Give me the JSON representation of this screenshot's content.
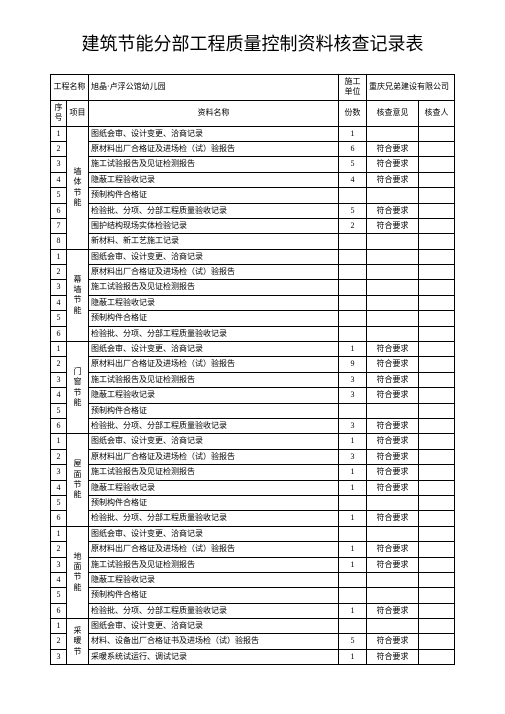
{
  "title": "建筑节能分部工程质量控制资料核查记录表",
  "header": {
    "project_name_label": "工程名称",
    "project_name_value": "旭晶·卢浮公馆幼儿园",
    "construction_unit_label": "施工单位",
    "construction_unit_value": "重庆兄弟建设有限公司"
  },
  "columns": {
    "seq": "序号",
    "proj": "项目",
    "doc_name": "资料名称",
    "count": "份数",
    "opinion": "核查意见",
    "checker": "核查人"
  },
  "ok": "符合要求",
  "groups": [
    {
      "proj": "墙体节能",
      "rows": [
        {
          "n": "1",
          "name": "图纸会审、设计变更、洽商记录",
          "c": "1",
          "op": ""
        },
        {
          "n": "2",
          "name": "原材料出厂合格证及进场检（试）验报告",
          "c": "6",
          "op": "ok"
        },
        {
          "n": "3",
          "name": "施工试验报告及见证检测报告",
          "c": "5",
          "op": "ok"
        },
        {
          "n": "4",
          "name": "隐蔽工程验收记录",
          "c": "4",
          "op": "ok"
        },
        {
          "n": "5",
          "name": "预制构件合格证",
          "c": "",
          "op": ""
        },
        {
          "n": "6",
          "name": "检验批、分项、分部工程质量验收记录",
          "c": "5",
          "op": "ok"
        },
        {
          "n": "7",
          "name": "围护结构现场实体检验记录",
          "c": "2",
          "op": "ok"
        },
        {
          "n": "8",
          "name": "新材料、新工艺施工记录",
          "c": "",
          "op": ""
        }
      ]
    },
    {
      "proj": "幕墙节能",
      "rows": [
        {
          "n": "1",
          "name": "图纸会审、设计变更、洽商记录",
          "c": "",
          "op": ""
        },
        {
          "n": "2",
          "name": "原材料出厂合格证及进场检（试）验报告",
          "c": "",
          "op": ""
        },
        {
          "n": "3",
          "name": "施工试验报告及见证检测报告",
          "c": "",
          "op": ""
        },
        {
          "n": "4",
          "name": "隐蔽工程验收记录",
          "c": "",
          "op": ""
        },
        {
          "n": "5",
          "name": "预制构件合格证",
          "c": "",
          "op": ""
        },
        {
          "n": "6",
          "name": "检验批、分项、分部工程质量验收记录",
          "c": "",
          "op": ""
        }
      ]
    },
    {
      "proj": "门窗节能",
      "rows": [
        {
          "n": "1",
          "name": "图纸会审、设计变更、洽商记录",
          "c": "1",
          "op": "ok"
        },
        {
          "n": "2",
          "name": "原材料出厂合格证及进场检（试）验报告",
          "c": "9",
          "op": "ok"
        },
        {
          "n": "3",
          "name": "施工试验报告及见证检测报告",
          "c": "3",
          "op": "ok"
        },
        {
          "n": "4",
          "name": "隐蔽工程验收记录",
          "c": "3",
          "op": "ok"
        },
        {
          "n": "5",
          "name": "预制构件合格证",
          "c": "",
          "op": ""
        },
        {
          "n": "6",
          "name": "检验批、分项、分部工程质量验收记录",
          "c": "3",
          "op": "ok"
        }
      ]
    },
    {
      "proj": "屋面节能",
      "rows": [
        {
          "n": "1",
          "name": "图纸会审、设计变更、洽商记录",
          "c": "1",
          "op": "ok"
        },
        {
          "n": "2",
          "name": "原材料出厂合格证及进场检（试）验报告",
          "c": "3",
          "op": "ok"
        },
        {
          "n": "3",
          "name": "施工试验报告及见证检测报告",
          "c": "1",
          "op": "ok"
        },
        {
          "n": "4",
          "name": "隐蔽工程验收记录",
          "c": "1",
          "op": "ok"
        },
        {
          "n": "5",
          "name": "预制构件合格证",
          "c": "",
          "op": ""
        },
        {
          "n": "6",
          "name": "检验批、分项、分部工程质量验收记录",
          "c": "1",
          "op": "ok"
        }
      ]
    },
    {
      "proj": "地面节能",
      "rows": [
        {
          "n": "1",
          "name": "图纸会审、设计变更、洽商记录",
          "c": "",
          "op": ""
        },
        {
          "n": "2",
          "name": "原材料出厂合格证及进场检（试）验报告",
          "c": "1",
          "op": "ok"
        },
        {
          "n": "3",
          "name": "施工试验报告及见证检测报告",
          "c": "1",
          "op": "ok"
        },
        {
          "n": "4",
          "name": "隐蔽工程验收记录",
          "c": "",
          "op": ""
        },
        {
          "n": "5",
          "name": "预制构件合格证",
          "c": "",
          "op": ""
        },
        {
          "n": "6",
          "name": "检验批、分项、分部工程质量验收记录",
          "c": "1",
          "op": "ok"
        }
      ]
    },
    {
      "proj": "采暖节",
      "rows": [
        {
          "n": "1",
          "name": "图纸会审、设计变更、洽商记录",
          "c": "",
          "op": ""
        },
        {
          "n": "2",
          "name": "材料、设备出厂合格证书及进场检（试）验报告",
          "c": "5",
          "op": "ok"
        },
        {
          "n": "3",
          "name": "采暖系统试运行、调试记录",
          "c": "1",
          "op": "ok"
        }
      ]
    }
  ]
}
